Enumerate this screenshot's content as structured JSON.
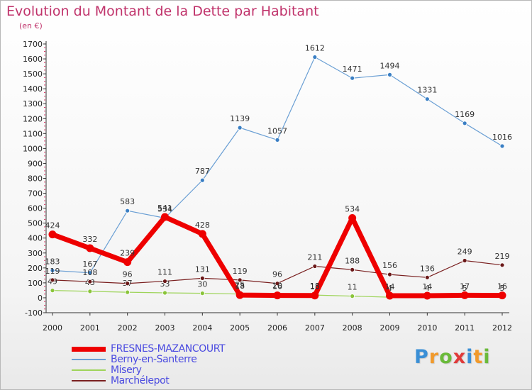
{
  "header": {
    "title": "Evolution du Montant de la Dette par Habitant",
    "subtitle": "(en €)"
  },
  "brand": {
    "letters": [
      "P",
      "r",
      "o",
      "x",
      "i",
      "t",
      "i"
    ],
    "colors": [
      "#3a8fd6",
      "#f19a2c",
      "#6aba3a",
      "#e03a3a",
      "#3a8fd6",
      "#f19a2c",
      "#6aba3a"
    ]
  },
  "chart_data": {
    "type": "line",
    "title": "Evolution du Montant de la Dette par Habitant",
    "subtitle": "(en €)",
    "x": [
      "2000",
      "2001",
      "2002",
      "2003",
      "2004",
      "2005",
      "2006",
      "2007",
      "2008",
      "2009",
      "2010",
      "2011",
      "2012"
    ],
    "ylim": [
      -100,
      1700
    ],
    "yticks": [
      -100,
      0,
      100,
      200,
      300,
      400,
      500,
      600,
      700,
      800,
      900,
      1000,
      1100,
      1200,
      1300,
      1400,
      1500,
      1600,
      1700
    ],
    "grid": false,
    "legend_position": "bottom-left",
    "series": [
      {
        "name": "Berny-en-Santerre",
        "color": "#6a9fd4",
        "marker_color": "#3a7fc4",
        "values": [
          183,
          167,
          583,
          534,
          787,
          1139,
          1057,
          1612,
          1471,
          1494,
          1331,
          1169,
          1016
        ],
        "labels": [
          "183",
          "167",
          "583",
          "534",
          "787",
          "1139",
          "1057",
          "1612",
          "1471",
          "1494",
          "1331",
          "1169",
          "1016"
        ]
      },
      {
        "name": "Misery",
        "color": "#9ed45a",
        "marker_color": "#8ac43a",
        "values": [
          49,
          43,
          37,
          33,
          30,
          25,
          20,
          18,
          11,
          4,
          4,
          5,
          5
        ],
        "labels": [
          "49",
          "43",
          "37",
          "33",
          "30",
          "25",
          "20",
          "18",
          "11",
          "4",
          "4",
          "5",
          "5"
        ]
      },
      {
        "name": "Marchélepot",
        "color": "#7a2020",
        "marker_color": "#6a1818",
        "values": [
          119,
          108,
          96,
          111,
          131,
          119,
          96,
          211,
          188,
          156,
          136,
          249,
          219
        ],
        "labels": [
          "119",
          "108",
          "96",
          "111",
          "131",
          "119",
          "96",
          "211",
          "188",
          "156",
          "136",
          "249",
          "219"
        ]
      },
      {
        "name": "FRESNES-MAZANCOURT",
        "color": "#ee0000",
        "marker_color": "#ee0000",
        "values": [
          424,
          332,
          239,
          541,
          428,
          18,
          16,
          15,
          534,
          14,
          14,
          17,
          16
        ],
        "labels": [
          "424",
          "332",
          "239",
          "541",
          "428",
          "18",
          "16",
          "15",
          "534",
          "14",
          "14",
          "17",
          "16"
        ]
      }
    ]
  },
  "legend": {
    "items": [
      {
        "label": "FRESNES-MAZANCOURT",
        "color": "#ee0000",
        "thickness": 7
      },
      {
        "label": "Berny-en-Santerre",
        "color": "#6a9fd4",
        "thickness": 2
      },
      {
        "label": "Misery",
        "color": "#9ed45a",
        "thickness": 2
      },
      {
        "label": "Marchélepot",
        "color": "#7a2020",
        "thickness": 2
      }
    ]
  }
}
